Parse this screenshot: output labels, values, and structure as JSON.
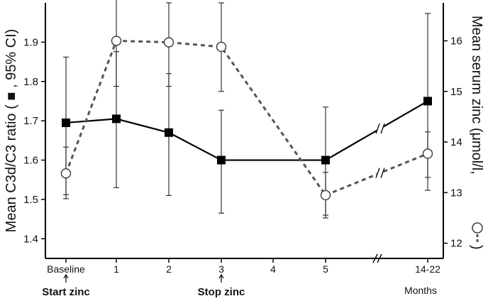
{
  "chart_data": {
    "type": "line",
    "categories": [
      "Baseline",
      "1",
      "2",
      "3",
      "4",
      "5",
      "14-22"
    ],
    "x_unit_label": "Months",
    "y_left": {
      "label_before": "Mean C3d/C3 ratio (",
      "label_after": ", 95% CI)",
      "ylim": [
        1.35,
        2.0
      ],
      "ticks": [
        "1.4",
        "1.5",
        "1.6",
        "1.7",
        "1.8",
        "1.9"
      ]
    },
    "y_right": {
      "label_before": "Mean serum zinc (μmol/l,",
      "label_after": ")",
      "ylim": [
        11.7,
        16.75
      ],
      "ticks": [
        "12",
        "13",
        "14",
        "15",
        "16"
      ]
    },
    "series": [
      {
        "axis": "left",
        "style": "solid",
        "marker": "filled-square",
        "color": "#000000",
        "points": [
          {
            "x": "Baseline",
            "y": 1.695,
            "ci": [
              1.512,
              1.862
            ]
          },
          {
            "x": "1",
            "y": 1.705,
            "ci": [
              1.53,
              1.876
            ]
          },
          {
            "x": "2",
            "y": 1.67,
            "ci": [
              1.51,
              1.82
            ]
          },
          {
            "x": "3",
            "y": 1.6,
            "ci": [
              1.465,
              1.727
            ]
          },
          {
            "x": "5",
            "y": 1.6,
            "ci": [
              1.46,
              1.735
            ]
          },
          {
            "x": "14-22",
            "y": 1.75,
            "ci": [
              1.523,
              1.973
            ]
          }
        ]
      },
      {
        "axis": "right",
        "style": "dashed",
        "marker": "open-circle",
        "color": "#555555",
        "points": [
          {
            "x": "Baseline",
            "y": 13.38,
            "ci": [
              12.88,
              13.9
            ]
          },
          {
            "x": "1",
            "y": 16.0,
            "ci": [
              15.1,
              16.9
            ]
          },
          {
            "x": "2",
            "y": 15.97,
            "ci": [
              15.1,
              16.75
            ]
          },
          {
            "x": "3",
            "y": 15.88,
            "ci": [
              15.0,
              16.75
            ]
          },
          {
            "x": "5",
            "y": 12.95,
            "ci": [
              12.5,
              13.4
            ]
          },
          {
            "x": "14-22",
            "y": 13.77,
            "ci": [
              13.3,
              14.2
            ]
          }
        ]
      }
    ],
    "annotations": [
      {
        "text": "Start zinc",
        "at": "Baseline"
      },
      {
        "text": "Stop zinc",
        "at": "3"
      }
    ],
    "axis_break": "between 5 and 14-22",
    "grid": false
  }
}
